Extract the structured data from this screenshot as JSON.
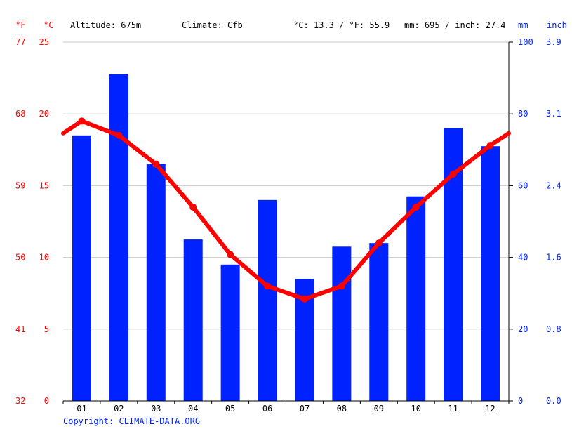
{
  "header": {
    "altitude": "Altitude: 675m",
    "climate": "Climate: Cfb",
    "temp_avg": "°C: 13.3 / °F: 55.9",
    "precip_total": "mm: 695 / inch: 27.4"
  },
  "units": {
    "fahrenheit": "°F",
    "celsius": "°C",
    "mm": "mm",
    "inch": "inch"
  },
  "copyright": "Copyright: CLIMATE-DATA.ORG",
  "colors": {
    "temperature": "#ff0000",
    "precipitation": "#0022ff",
    "grid": "#c8c8c8",
    "axis": "#000000"
  },
  "chart_data": {
    "type": "bar+line",
    "categories": [
      "01",
      "02",
      "03",
      "04",
      "05",
      "06",
      "07",
      "08",
      "09",
      "10",
      "11",
      "12"
    ],
    "series": [
      {
        "name": "Precipitation (mm)",
        "type": "bar",
        "axis": "right",
        "values": [
          74,
          91,
          66,
          45,
          38,
          56,
          34,
          43,
          44,
          57,
          76,
          71
        ]
      },
      {
        "name": "Temperature (°C)",
        "type": "line",
        "axis": "left",
        "values": [
          19.5,
          18.5,
          16.5,
          13.5,
          10.2,
          8.0,
          7.1,
          8.0,
          11.0,
          13.5,
          15.8,
          17.8
        ]
      }
    ],
    "left_axis_celsius": {
      "ticks": [
        "0",
        "5",
        "10",
        "15",
        "20",
        "25"
      ],
      "range": [
        0,
        25
      ]
    },
    "left_axis_fahrenheit": {
      "ticks": [
        "32",
        "41",
        "50",
        "59",
        "68",
        "77"
      ]
    },
    "right_axis_mm": {
      "ticks": [
        "0",
        "20",
        "40",
        "60",
        "80",
        "100"
      ],
      "range": [
        0,
        100
      ]
    },
    "right_axis_inch": {
      "ticks": [
        "0.0",
        "0.8",
        "1.6",
        "2.4",
        "3.1",
        "3.9"
      ]
    },
    "grid": true
  }
}
